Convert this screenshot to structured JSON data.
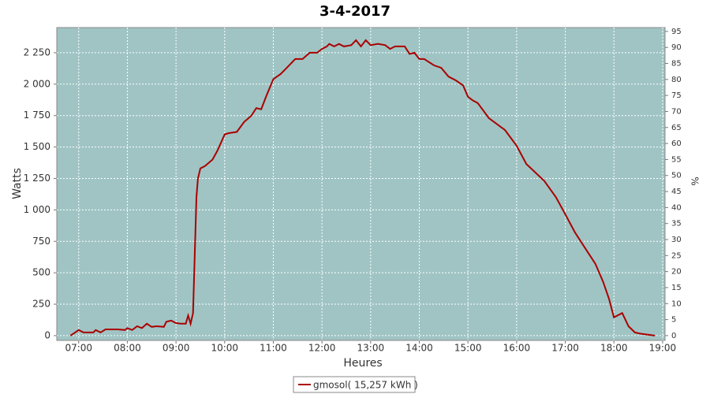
{
  "chart_data": {
    "type": "line",
    "title": "3-4-2017",
    "xlabel": "Heures",
    "ylabel": "Watts",
    "y2label": "%",
    "legend_position": "bottom",
    "xlim": [
      6.55,
      19.05
    ],
    "xticks": [
      {
        "value": 7,
        "label": "07:00"
      },
      {
        "value": 8,
        "label": "08:00"
      },
      {
        "value": 9,
        "label": "09:00"
      },
      {
        "value": 10,
        "label": "10:00"
      },
      {
        "value": 11,
        "label": "11:00"
      },
      {
        "value": 12,
        "label": "12:00"
      },
      {
        "value": 13,
        "label": "13:00"
      },
      {
        "value": 14,
        "label": "14:00"
      },
      {
        "value": 15,
        "label": "15:00"
      },
      {
        "value": 16,
        "label": "16:00"
      },
      {
        "value": 17,
        "label": "17:00"
      },
      {
        "value": 18,
        "label": "18:00"
      },
      {
        "value": 19,
        "label": "19:00"
      }
    ],
    "ylim": [
      -38,
      2450
    ],
    "yticks": [
      0,
      250,
      500,
      750,
      {
        "value": 1000,
        "label": "1 000"
      },
      {
        "value": 1250,
        "label": "1 250"
      },
      {
        "value": 1500,
        "label": "1 500"
      },
      {
        "value": 1750,
        "label": "1 750"
      },
      {
        "value": 2000,
        "label": "2 000"
      },
      {
        "value": 2250,
        "label": "2 250"
      }
    ],
    "y2lim": [
      -1.5,
      96.2
    ],
    "y2ticks": [
      0,
      5,
      10,
      15,
      20,
      25,
      30,
      35,
      40,
      45,
      50,
      55,
      60,
      65,
      70,
      75,
      80,
      85,
      90,
      95
    ],
    "grid": true,
    "series": [
      {
        "name": "gmosol( 15,257 kWh )",
        "color": "#aa0000",
        "x": [
          6.83,
          7.0,
          7.1,
          7.3,
          7.35,
          7.45,
          7.55,
          7.8,
          7.95,
          8.0,
          8.1,
          8.2,
          8.3,
          8.4,
          8.5,
          8.6,
          8.75,
          8.8,
          8.9,
          9.0,
          9.1,
          9.2,
          9.25,
          9.3,
          9.35,
          9.42,
          9.45,
          9.5,
          9.6,
          9.75,
          9.85,
          10.0,
          10.08,
          10.25,
          10.4,
          10.55,
          10.65,
          10.75,
          10.85,
          11.0,
          11.15,
          11.25,
          11.35,
          11.45,
          11.6,
          11.75,
          11.9,
          12.0,
          12.1,
          12.15,
          12.25,
          12.35,
          12.45,
          12.6,
          12.7,
          12.8,
          12.9,
          13.0,
          13.15,
          13.3,
          13.4,
          13.5,
          13.7,
          13.8,
          13.9,
          14.0,
          14.1,
          14.3,
          14.45,
          14.6,
          14.75,
          14.9,
          15.0,
          15.1,
          15.2,
          15.43,
          15.76,
          16.0,
          16.2,
          16.57,
          16.81,
          17.0,
          17.2,
          17.46,
          17.62,
          17.78,
          17.9,
          18.0,
          18.17,
          18.3,
          18.43,
          18.55,
          18.84
        ],
        "values": [
          0,
          45,
          25,
          25,
          45,
          25,
          50,
          50,
          45,
          60,
          45,
          75,
          60,
          95,
          70,
          75,
          70,
          110,
          120,
          100,
          95,
          95,
          160,
          95,
          180,
          1100,
          1250,
          1330,
          1350,
          1400,
          1470,
          1600,
          1610,
          1620,
          1700,
          1750,
          1810,
          1800,
          1900,
          2040,
          2080,
          2120,
          2160,
          2200,
          2200,
          2250,
          2250,
          2280,
          2300,
          2320,
          2300,
          2320,
          2300,
          2310,
          2350,
          2300,
          2350,
          2310,
          2320,
          2310,
          2280,
          2300,
          2300,
          2240,
          2250,
          2200,
          2200,
          2150,
          2130,
          2060,
          2030,
          1990,
          1900,
          1870,
          1850,
          1730,
          1635,
          1510,
          1365,
          1230,
          1100,
          965,
          820,
          665,
          570,
          425,
          290,
          145,
          180,
          75,
          25,
          15,
          0
        ]
      }
    ]
  }
}
